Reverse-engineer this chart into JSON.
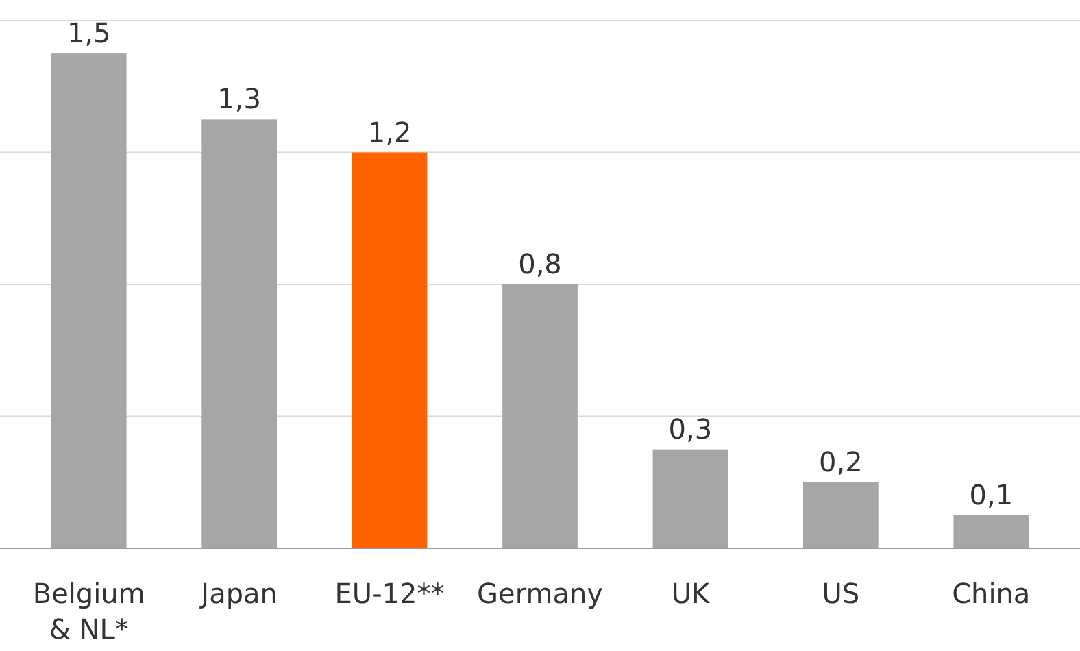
{
  "chart_data": {
    "type": "bar",
    "categories": [
      "Belgium & NL*",
      "Japan",
      "EU-12**",
      "Germany",
      "UK",
      "US",
      "China"
    ],
    "values": [
      1.5,
      1.3,
      1.2,
      0.8,
      0.3,
      0.2,
      0.1
    ],
    "colors": [
      "#a6a6a6",
      "#a6a6a6",
      "#ff6200",
      "#a6a6a6",
      "#a6a6a6",
      "#a6a6a6",
      "#a6a6a6"
    ],
    "value_labels": [
      "1,5",
      "1,3",
      "1,2",
      "0,8",
      "0,3",
      "0,2",
      "0,1"
    ],
    "ylim": [
      0,
      1.6
    ],
    "yticks": [
      {
        "value": 0,
        "label": null
      },
      {
        "value": 0.4,
        "label": null
      },
      {
        "value": 0.8,
        "label": null
      },
      {
        "value": 1.2,
        "label": null
      },
      {
        "value": 1.6,
        "label": null
      }
    ],
    "grid": "y",
    "tick_labels": "x"
  }
}
